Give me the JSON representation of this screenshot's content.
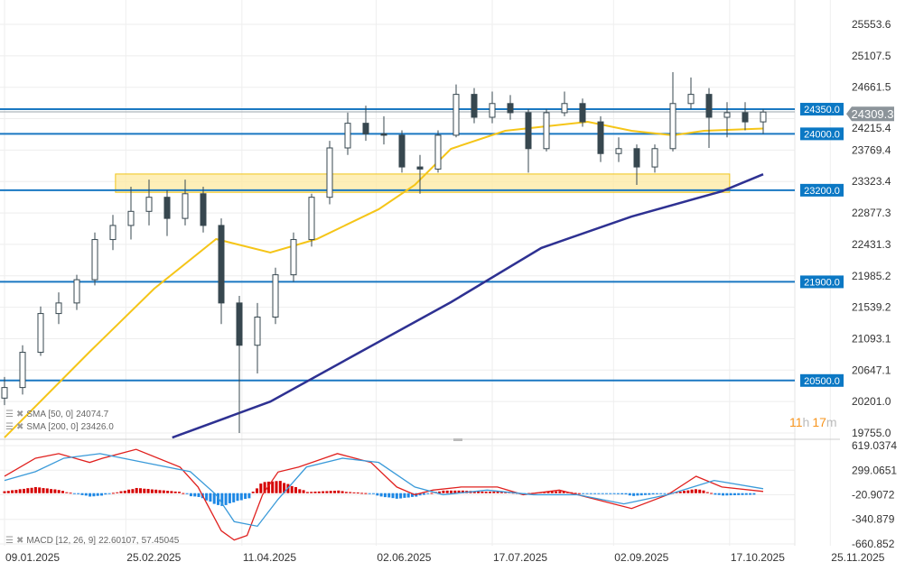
{
  "chart_data": [
    {
      "type": "candlestick",
      "panel": "price",
      "ylim": [
        19755.0,
        25553.6
      ],
      "y_ticks": [
        "25553.6",
        "25107.5",
        "24661.5",
        "24215.4",
        "23769.4",
        "23323.4",
        "22877.3",
        "22431.3",
        "21985.2",
        "21539.2",
        "21093.1",
        "20647.1",
        "20201.0",
        "19755.0"
      ],
      "x_ticks": [
        "09.01.2025",
        "25.02.2025",
        "11.04.2025",
        "02.06.2025",
        "17.07.2025",
        "02.09.2025",
        "17.10.2025",
        "25.11.2025"
      ],
      "grid": true,
      "candles": [
        [
          "2025-01-09",
          20250,
          20550,
          20150,
          20400
        ],
        [
          "2025-01-16",
          20400,
          21000,
          20300,
          20900
        ],
        [
          "2025-01-23",
          20900,
          21550,
          20850,
          21450
        ],
        [
          "2025-01-30",
          21450,
          21750,
          21300,
          21600
        ],
        [
          "2025-02-06",
          21600,
          22000,
          21500,
          21930
        ],
        [
          "2025-02-13",
          21930,
          22600,
          21850,
          22500
        ],
        [
          "2025-02-20",
          22500,
          22850,
          22350,
          22700
        ],
        [
          "2025-02-27",
          22700,
          23250,
          22500,
          22900
        ],
        [
          "2025-03-06",
          22900,
          23350,
          22700,
          23100
        ],
        [
          "2025-03-13",
          23100,
          23200,
          22550,
          22800
        ],
        [
          "2025-03-20",
          22800,
          23350,
          22700,
          23150
        ],
        [
          "2025-03-27",
          23150,
          23250,
          22600,
          22700
        ],
        [
          "2025-04-03",
          22700,
          22800,
          21300,
          21600
        ],
        [
          "2025-04-10",
          21600,
          21700,
          19755,
          21000
        ],
        [
          "2025-04-17",
          21000,
          21600,
          20600,
          21400
        ],
        [
          "2025-04-24",
          21400,
          22100,
          21300,
          22000
        ],
        [
          "2025-05-01",
          22000,
          22600,
          21900,
          22500
        ],
        [
          "2025-05-08",
          22500,
          23150,
          22400,
          23100
        ],
        [
          "2025-05-15",
          23100,
          23900,
          23000,
          23800
        ],
        [
          "2025-05-22",
          23800,
          24300,
          23700,
          24150
        ],
        [
          "2025-05-29",
          24150,
          24400,
          23900,
          24000
        ],
        [
          "2025-06-05",
          24000,
          24250,
          23850,
          23980
        ],
        [
          "2025-06-12",
          23980,
          24050,
          23450,
          23530
        ],
        [
          "2025-06-19",
          23530,
          23700,
          23150,
          23500
        ],
        [
          "2025-06-26",
          23500,
          24050,
          23450,
          23980
        ],
        [
          "2025-07-03",
          23980,
          24700,
          23950,
          24560
        ],
        [
          "2025-07-10",
          24560,
          24650,
          24150,
          24235
        ],
        [
          "2025-07-17",
          24235,
          24600,
          24150,
          24430
        ],
        [
          "2025-07-24",
          24430,
          24550,
          24200,
          24300
        ],
        [
          "2025-07-31",
          24300,
          24350,
          23450,
          23790
        ],
        [
          "2025-08-07",
          23790,
          24350,
          23750,
          24300
        ],
        [
          "2025-08-14",
          24300,
          24600,
          24250,
          24430
        ],
        [
          "2025-08-21",
          24430,
          24500,
          24100,
          24170
        ],
        [
          "2025-08-28",
          24170,
          24250,
          23600,
          23720
        ],
        [
          "2025-09-04",
          23720,
          23950,
          23600,
          23790
        ],
        [
          "2025-09-11",
          23790,
          23850,
          23275,
          23530
        ],
        [
          "2025-09-18",
          23530,
          23850,
          23450,
          23790
        ],
        [
          "2025-09-25",
          23790,
          24875,
          23750,
          24430
        ],
        [
          "2025-10-02",
          24430,
          24800,
          24350,
          24560
        ],
        [
          "2025-10-09",
          24560,
          24650,
          23800,
          24235
        ],
        [
          "2025-10-16",
          24235,
          24450,
          23950,
          24300
        ],
        [
          "2025-10-23",
          24300,
          24450,
          24050,
          24170
        ],
        [
          "2025-10-30",
          24170,
          24350,
          24000,
          24309.3
        ]
      ],
      "last_price": "24309.3",
      "hidden_tick": "24215.6",
      "levels": [
        {
          "value": 24350.0,
          "label": "24350.0"
        },
        {
          "value": 24000.0,
          "label": "24000.0"
        },
        {
          "value": 23200.0,
          "label": "23200.0"
        },
        {
          "value": 21900.0,
          "label": "21900.0"
        },
        {
          "value": 20500.0,
          "label": "20500.0"
        }
      ],
      "zone": {
        "from": "2025-02-21",
        "to": "2025-10-17",
        "low": 23170,
        "high": 23430
      },
      "series": [
        {
          "name": "SMA [50, 0]",
          "value_label": "24074.7",
          "color": "#f5c518",
          "points": [
            [
              "2025-01-09",
              19690
            ],
            [
              "2025-02-11",
              20907
            ],
            [
              "2025-03-08",
              21803
            ],
            [
              "2025-04-01",
              22507
            ],
            [
              "2025-04-22",
              22315
            ],
            [
              "2025-05-10",
              22507
            ],
            [
              "2025-06-03",
              22930
            ],
            [
              "2025-06-17",
              23275
            ],
            [
              "2025-07-01",
              23787
            ],
            [
              "2025-07-22",
              24043
            ],
            [
              "2025-08-23",
              24171
            ],
            [
              "2025-09-09",
              24043
            ],
            [
              "2025-09-25",
              23980
            ],
            [
              "2025-10-07",
              24043
            ],
            [
              "2025-10-30",
              24074.7
            ]
          ]
        },
        {
          "name": "SMA [200, 0]",
          "value_label": "23426.0",
          "color": "#2e3192",
          "points": [
            [
              "2025-03-15",
              19690
            ],
            [
              "2025-04-22",
              20200
            ],
            [
              "2025-05-27",
              20907
            ],
            [
              "2025-07-01",
              21611
            ],
            [
              "2025-08-05",
              22380
            ],
            [
              "2025-09-09",
              22827
            ],
            [
              "2025-10-14",
              23185
            ],
            [
              "2025-10-30",
              23426.0
            ]
          ]
        }
      ]
    },
    {
      "type": "line",
      "panel": "macd",
      "name": "MACD [12, 26, 9]",
      "value_labels": [
        "22.60107,",
        "57.45045"
      ],
      "ylim": [
        -660.852,
        619.0374
      ],
      "y_ticks": [
        "619.0374",
        "299.0651",
        "-20.9072",
        "-340.879",
        "-660.852"
      ],
      "series": [
        {
          "name": "MACD",
          "color": "#e0201e",
          "points": [
            [
              "2025-01-09",
              220
            ],
            [
              "2025-01-21",
              455
            ],
            [
              "2025-01-30",
              515
            ],
            [
              "2025-02-11",
              400
            ],
            [
              "2025-02-16",
              455
            ],
            [
              "2025-03-01",
              570
            ],
            [
              "2025-03-18",
              340
            ],
            [
              "2025-03-25",
              80
            ],
            [
              "2025-04-03",
              -490
            ],
            [
              "2025-04-08",
              -610
            ],
            [
              "2025-04-13",
              -550
            ],
            [
              "2025-04-19",
              -20
            ],
            [
              "2025-04-25",
              275
            ],
            [
              "2025-05-03",
              340
            ],
            [
              "2025-05-18",
              515
            ],
            [
              "2025-05-31",
              400
            ],
            [
              "2025-06-10",
              80
            ],
            [
              "2025-06-17",
              -20
            ],
            [
              "2025-06-24",
              40
            ],
            [
              "2025-07-05",
              80
            ],
            [
              "2025-07-19",
              80
            ],
            [
              "2025-07-29",
              -20
            ],
            [
              "2025-08-12",
              40
            ],
            [
              "2025-08-26",
              -80
            ],
            [
              "2025-09-09",
              -200
            ],
            [
              "2025-09-23",
              -20
            ],
            [
              "2025-10-04",
              220
            ],
            [
              "2025-10-14",
              80
            ],
            [
              "2025-10-30",
              22.6
            ]
          ]
        },
        {
          "name": "Signal",
          "color": "#3a9ad9",
          "points": [
            [
              "2025-01-09",
              165
            ],
            [
              "2025-01-21",
              280
            ],
            [
              "2025-02-01",
              455
            ],
            [
              "2025-02-15",
              515
            ],
            [
              "2025-03-04",
              400
            ],
            [
              "2025-03-22",
              280
            ],
            [
              "2025-04-01",
              -20
            ],
            [
              "2025-04-08",
              -370
            ],
            [
              "2025-04-17",
              -430
            ],
            [
              "2025-04-25",
              -80
            ],
            [
              "2025-05-06",
              340
            ],
            [
              "2025-05-20",
              455
            ],
            [
              "2025-06-03",
              400
            ],
            [
              "2025-06-17",
              80
            ],
            [
              "2025-06-28",
              -20
            ],
            [
              "2025-07-15",
              40
            ],
            [
              "2025-08-02",
              -20
            ],
            [
              "2025-08-19",
              -20
            ],
            [
              "2025-09-06",
              -140
            ],
            [
              "2025-09-23",
              -20
            ],
            [
              "2025-10-11",
              165
            ],
            [
              "2025-10-30",
              57.45
            ]
          ]
        }
      ],
      "histogram_colors": {
        "positive": "#d50000",
        "negative": "#1e88e5"
      }
    }
  ],
  "countdown": {
    "hours": "11",
    "h": "h",
    "minutes": "17",
    "m": "m"
  },
  "colors": {
    "level_line": "#1a78c2",
    "level_label_bg": "#0b78c4",
    "price_tag_bg": "#8c949a",
    "zone_fill": "#fde9a0",
    "zone_border": "#f0c419"
  }
}
